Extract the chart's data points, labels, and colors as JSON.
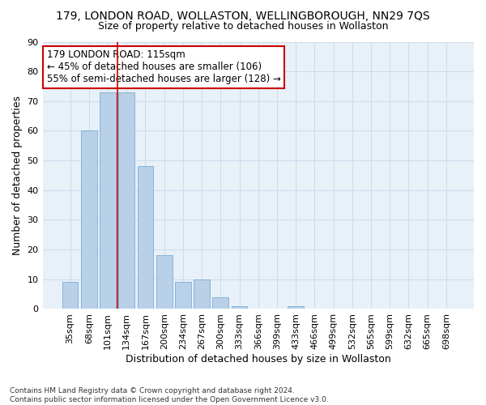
{
  "title": "179, LONDON ROAD, WOLLASTON, WELLINGBOROUGH, NN29 7QS",
  "subtitle": "Size of property relative to detached houses in Wollaston",
  "xlabel": "Distribution of detached houses by size in Wollaston",
  "ylabel": "Number of detached properties",
  "footer_line1": "Contains HM Land Registry data © Crown copyright and database right 2024.",
  "footer_line2": "Contains public sector information licensed under the Open Government Licence v3.0.",
  "categories": [
    "35sqm",
    "68sqm",
    "101sqm",
    "134sqm",
    "167sqm",
    "200sqm",
    "234sqm",
    "267sqm",
    "300sqm",
    "333sqm",
    "366sqm",
    "399sqm",
    "433sqm",
    "466sqm",
    "499sqm",
    "532sqm",
    "565sqm",
    "599sqm",
    "632sqm",
    "665sqm",
    "698sqm"
  ],
  "bar_values": [
    9,
    60,
    73,
    73,
    48,
    18,
    9,
    10,
    4,
    1,
    0,
    0,
    1,
    0,
    0,
    0,
    0,
    0,
    0,
    0,
    0
  ],
  "bar_color": "#b8d0e8",
  "bar_edge_color": "#7aaed6",
  "grid_color": "#c8d8ea",
  "background_color": "#e8f0f8",
  "vline_x_index": 2.5,
  "vline_color": "#cc0000",
  "annotation_line1": "179 LONDON ROAD: 115sqm",
  "annotation_line2": "← 45% of detached houses are smaller (106)",
  "annotation_line3": "55% of semi-detached houses are larger (128) →",
  "annotation_box_color": "#ffffff",
  "annotation_box_edge": "#cc0000",
  "ylim": [
    0,
    90
  ],
  "yticks": [
    0,
    10,
    20,
    30,
    40,
    50,
    60,
    70,
    80,
    90
  ],
  "title_fontsize": 10,
  "subtitle_fontsize": 9,
  "xlabel_fontsize": 9,
  "ylabel_fontsize": 9,
  "tick_fontsize": 8,
  "annotation_fontsize": 8.5
}
